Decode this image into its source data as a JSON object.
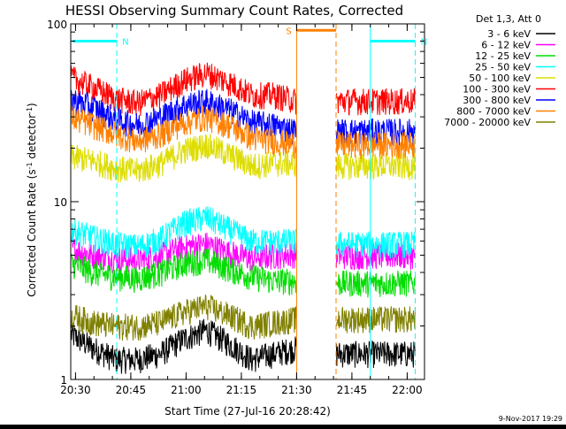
{
  "chart_data": {
    "type": "line",
    "title": "HESSI Observing Summary Count Rates, Corrected",
    "xlabel": "Start Time (27-Jul-16 20:28:42)",
    "ylabel_main": "Corrected Count Rate (s",
    "ylabel_sup1": "-1",
    "ylabel_mid": " detector",
    "ylabel_sup2": "-1",
    "ylabel_end": ")",
    "y_scale": "log",
    "ylim": [
      1,
      100
    ],
    "xlim_minutes": [
      0,
      96
    ],
    "x_tick_labels": [
      "20:30",
      "20:45",
      "21:00",
      "21:15",
      "21:30",
      "21:45",
      "22:00"
    ],
    "x_tick_minutes": [
      1.3,
      16.3,
      31.3,
      46.3,
      61.3,
      76.3,
      91.3
    ],
    "y_tick_labels": [
      "1",
      "10",
      "100"
    ],
    "y_tick_values": [
      1,
      10,
      100
    ],
    "legend_header": "Det 1,3, Att 0",
    "legend_position": "right",
    "timestamp": "9-Nov-2017 19:29",
    "gap_minutes": [
      61.3,
      72.0
    ],
    "annotations": [
      {
        "text": "N",
        "color": "#00ffff",
        "bar_minutes": [
          0.5,
          12.5
        ],
        "dashed_minutes": [
          12.5
        ],
        "level": 80
      },
      {
        "text": "N",
        "color": "#00ffff",
        "bar_minutes": [
          81.3,
          93.5
        ],
        "solid_minutes": [
          81.3
        ],
        "dashed_minutes": [
          93.5
        ],
        "level": 80
      },
      {
        "text": "S",
        "color": "#ff8000",
        "bar_minutes": [
          61.3,
          72.0
        ],
        "solid_minutes": [
          61.3
        ],
        "dashed_minutes": [
          72.0
        ],
        "level": 92
      }
    ],
    "series": [
      {
        "name": "3 - 6 keV",
        "color": "#000000",
        "levels": [
          1.8,
          1.5,
          1.3,
          1.3,
          1.4,
          1.7,
          1.9,
          1.6,
          1.3,
          1.4,
          1.5
        ],
        "after": 1.4
      },
      {
        "name": "6 - 12 keV",
        "color": "#ff00ff",
        "levels": [
          5.5,
          5.0,
          4.8,
          4.7,
          5.0,
          5.6,
          5.8,
          5.2,
          4.8,
          5.0,
          5.1
        ],
        "after": 5.0
      },
      {
        "name": "12 - 25 keV",
        "color": "#00dd00",
        "levels": [
          4.5,
          4.0,
          3.8,
          3.7,
          4.0,
          4.5,
          4.7,
          4.2,
          3.8,
          3.6,
          3.6
        ],
        "after": 3.5
      },
      {
        "name": "25 - 50 keV",
        "color": "#00ffff",
        "levels": [
          7.0,
          6.3,
          5.8,
          5.6,
          6.2,
          7.6,
          8.2,
          7.0,
          6.0,
          6.0,
          6.0
        ],
        "after": 5.8
      },
      {
        "name": "50 - 100 keV",
        "color": "#dddd00",
        "levels": [
          18,
          17,
          15.5,
          15,
          16.5,
          19.5,
          21,
          18.5,
          16,
          16.5,
          16.5
        ],
        "after": 16
      },
      {
        "name": "100 - 300 keV",
        "color": "#ff0000",
        "levels": [
          50,
          44,
          38,
          36,
          40,
          48,
          53,
          47,
          40,
          40,
          37
        ],
        "after": 37
      },
      {
        "name": "300 - 800 keV",
        "color": "#0000ff",
        "levels": [
          38,
          34,
          29,
          27,
          30,
          35,
          37,
          33,
          28,
          27,
          25
        ],
        "after": 25
      },
      {
        "name": "800 - 7000 keV",
        "color": "#ff8000",
        "levels": [
          30,
          27,
          24,
          22,
          24,
          28,
          30,
          27,
          23,
          22,
          21
        ],
        "after": 21
      },
      {
        "name": "7000 - 20000 keV",
        "color": "#808000",
        "levels": [
          2.3,
          2.1,
          2.0,
          2.0,
          2.1,
          2.4,
          2.6,
          2.3,
          2.0,
          2.1,
          2.2
        ],
        "after": 2.2
      }
    ]
  }
}
